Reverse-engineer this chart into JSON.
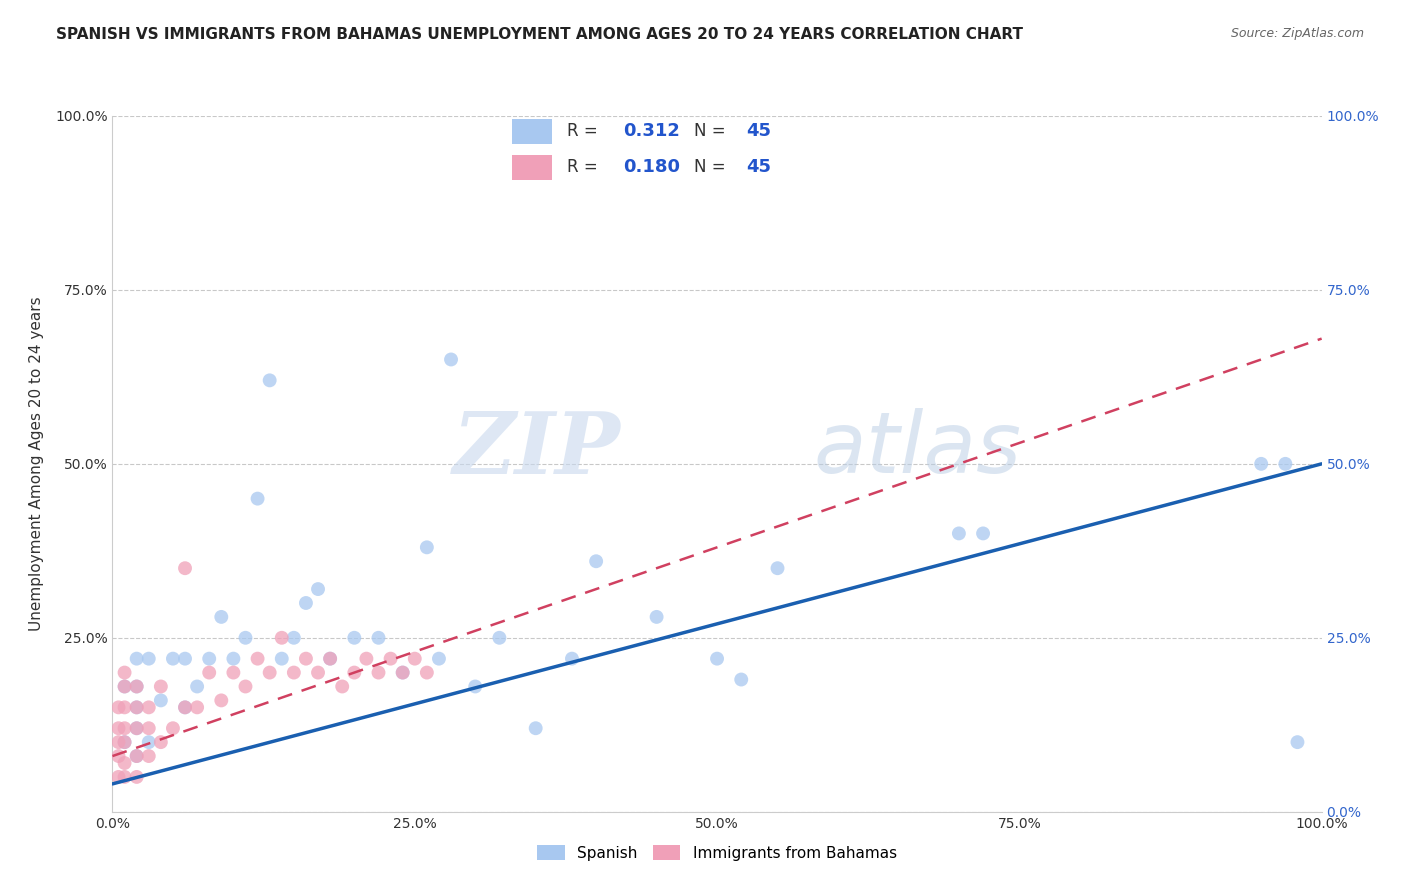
{
  "title": "SPANISH VS IMMIGRANTS FROM BAHAMAS UNEMPLOYMENT AMONG AGES 20 TO 24 YEARS CORRELATION CHART",
  "source": "Source: ZipAtlas.com",
  "ylabel": "Unemployment Among Ages 20 to 24 years",
  "xlim": [
    0,
    1.0
  ],
  "ylim": [
    0,
    1.0
  ],
  "xtick_labels": [
    "0.0%",
    "25.0%",
    "50.0%",
    "75.0%",
    "100.0%"
  ],
  "xtick_vals": [
    0.0,
    0.25,
    0.5,
    0.75,
    1.0
  ],
  "ytick_labels": [
    "",
    "25.0%",
    "50.0%",
    "75.0%",
    "100.0%"
  ],
  "ytick_vals": [
    0.0,
    0.25,
    0.5,
    0.75,
    1.0
  ],
  "right_ytick_labels": [
    "100.0%",
    "75.0%",
    "50.0%",
    "25.0%",
    "0.0%"
  ],
  "right_ytick_vals": [
    1.0,
    0.75,
    0.5,
    0.25,
    0.0
  ],
  "legend_r_blue": "0.312",
  "legend_n_blue": "45",
  "legend_r_pink": "0.180",
  "legend_n_pink": "45",
  "blue_scatter_x": [
    0.01,
    0.01,
    0.02,
    0.02,
    0.02,
    0.02,
    0.02,
    0.03,
    0.03,
    0.04,
    0.05,
    0.06,
    0.06,
    0.07,
    0.08,
    0.09,
    0.1,
    0.11,
    0.12,
    0.13,
    0.14,
    0.15,
    0.16,
    0.17,
    0.18,
    0.2,
    0.22,
    0.24,
    0.26,
    0.27,
    0.28,
    0.3,
    0.32,
    0.35,
    0.38,
    0.4,
    0.45,
    0.5,
    0.52,
    0.55,
    0.7,
    0.72,
    0.95,
    0.97,
    0.98
  ],
  "blue_scatter_y": [
    0.1,
    0.18,
    0.08,
    0.12,
    0.15,
    0.18,
    0.22,
    0.1,
    0.22,
    0.16,
    0.22,
    0.15,
    0.22,
    0.18,
    0.22,
    0.28,
    0.22,
    0.25,
    0.45,
    0.62,
    0.22,
    0.25,
    0.3,
    0.32,
    0.22,
    0.25,
    0.25,
    0.2,
    0.38,
    0.22,
    0.65,
    0.18,
    0.25,
    0.12,
    0.22,
    0.36,
    0.28,
    0.22,
    0.19,
    0.35,
    0.4,
    0.4,
    0.5,
    0.5,
    0.1
  ],
  "pink_scatter_x": [
    0.005,
    0.005,
    0.005,
    0.005,
    0.005,
    0.01,
    0.01,
    0.01,
    0.01,
    0.01,
    0.01,
    0.01,
    0.02,
    0.02,
    0.02,
    0.02,
    0.02,
    0.03,
    0.03,
    0.03,
    0.04,
    0.04,
    0.05,
    0.06,
    0.06,
    0.07,
    0.08,
    0.09,
    0.1,
    0.11,
    0.12,
    0.13,
    0.14,
    0.15,
    0.16,
    0.17,
    0.18,
    0.19,
    0.2,
    0.21,
    0.22,
    0.23,
    0.24,
    0.25,
    0.26
  ],
  "pink_scatter_y": [
    0.05,
    0.08,
    0.1,
    0.12,
    0.15,
    0.05,
    0.07,
    0.1,
    0.12,
    0.15,
    0.18,
    0.2,
    0.05,
    0.08,
    0.12,
    0.15,
    0.18,
    0.08,
    0.12,
    0.15,
    0.1,
    0.18,
    0.12,
    0.15,
    0.35,
    0.15,
    0.2,
    0.16,
    0.2,
    0.18,
    0.22,
    0.2,
    0.25,
    0.2,
    0.22,
    0.2,
    0.22,
    0.18,
    0.2,
    0.22,
    0.2,
    0.22,
    0.2,
    0.22,
    0.2
  ],
  "blue_line_x": [
    0.0,
    1.0
  ],
  "blue_line_y": [
    0.04,
    0.5
  ],
  "pink_line_x": [
    0.0,
    1.0
  ],
  "pink_line_y": [
    0.08,
    0.68
  ],
  "blue_color": "#a8c8f0",
  "pink_color": "#f0a0b8",
  "blue_line_color": "#1a5fb0",
  "pink_line_color": "#d04060",
  "watermark_zip": "ZIP",
  "watermark_atlas": "atlas",
  "background_color": "#ffffff",
  "grid_color": "#bbbbbb",
  "title_fontsize": 11,
  "axis_label_fontsize": 11,
  "tick_fontsize": 10,
  "legend_fontsize": 13,
  "right_tick_color": "#3366cc"
}
